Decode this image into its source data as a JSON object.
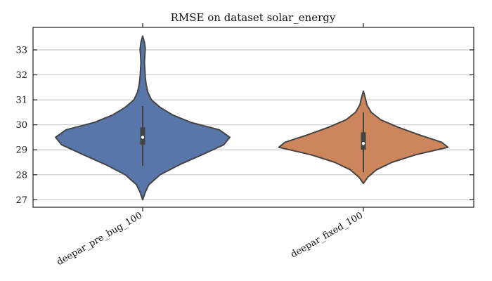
{
  "chart_data": {
    "type": "violin",
    "title": "RMSE on dataset solar_energy",
    "xlabel": "",
    "ylabel": "",
    "ylim": [
      26.7,
      33.9
    ],
    "yticks": [
      27,
      28,
      29,
      30,
      31,
      32,
      33
    ],
    "grid": true,
    "categories": [
      "deepar_pre_bug_100",
      "deepar_fixed_100"
    ],
    "series": [
      {
        "category": "deepar_pre_bug_100",
        "color": "#5876a9",
        "min": 27.0,
        "max": 33.55,
        "whisker_low": 28.35,
        "whisker_high": 30.75,
        "q1": 29.2,
        "median": 29.5,
        "q3": 29.9,
        "density": [
          [
            27.0,
            0.0
          ],
          [
            27.3,
            0.03
          ],
          [
            27.6,
            0.07
          ],
          [
            28.0,
            0.2
          ],
          [
            28.4,
            0.42
          ],
          [
            28.8,
            0.68
          ],
          [
            29.2,
            0.93
          ],
          [
            29.5,
            1.0
          ],
          [
            29.8,
            0.88
          ],
          [
            30.1,
            0.55
          ],
          [
            30.4,
            0.34
          ],
          [
            30.7,
            0.2
          ],
          [
            31.0,
            0.1
          ],
          [
            31.3,
            0.06
          ],
          [
            31.6,
            0.04
          ],
          [
            31.9,
            0.03
          ],
          [
            32.2,
            0.025
          ],
          [
            32.5,
            0.02
          ],
          [
            32.8,
            0.025
          ],
          [
            33.05,
            0.03
          ],
          [
            33.3,
            0.02
          ],
          [
            33.55,
            0.0
          ]
        ]
      },
      {
        "category": "deepar_fixed_100",
        "color": "#cd865c",
        "min": 27.65,
        "max": 31.35,
        "whisker_low": 28.1,
        "whisker_high": 30.5,
        "q1": 29.0,
        "median": 29.25,
        "q3": 29.7,
        "density": [
          [
            27.65,
            0.0
          ],
          [
            27.9,
            0.05
          ],
          [
            28.2,
            0.15
          ],
          [
            28.5,
            0.33
          ],
          [
            28.8,
            0.6
          ],
          [
            29.1,
            0.97
          ],
          [
            29.3,
            0.9
          ],
          [
            29.6,
            0.64
          ],
          [
            29.9,
            0.4
          ],
          [
            30.2,
            0.2
          ],
          [
            30.5,
            0.09
          ],
          [
            30.8,
            0.04
          ],
          [
            31.1,
            0.02
          ],
          [
            31.35,
            0.0
          ]
        ]
      }
    ]
  }
}
